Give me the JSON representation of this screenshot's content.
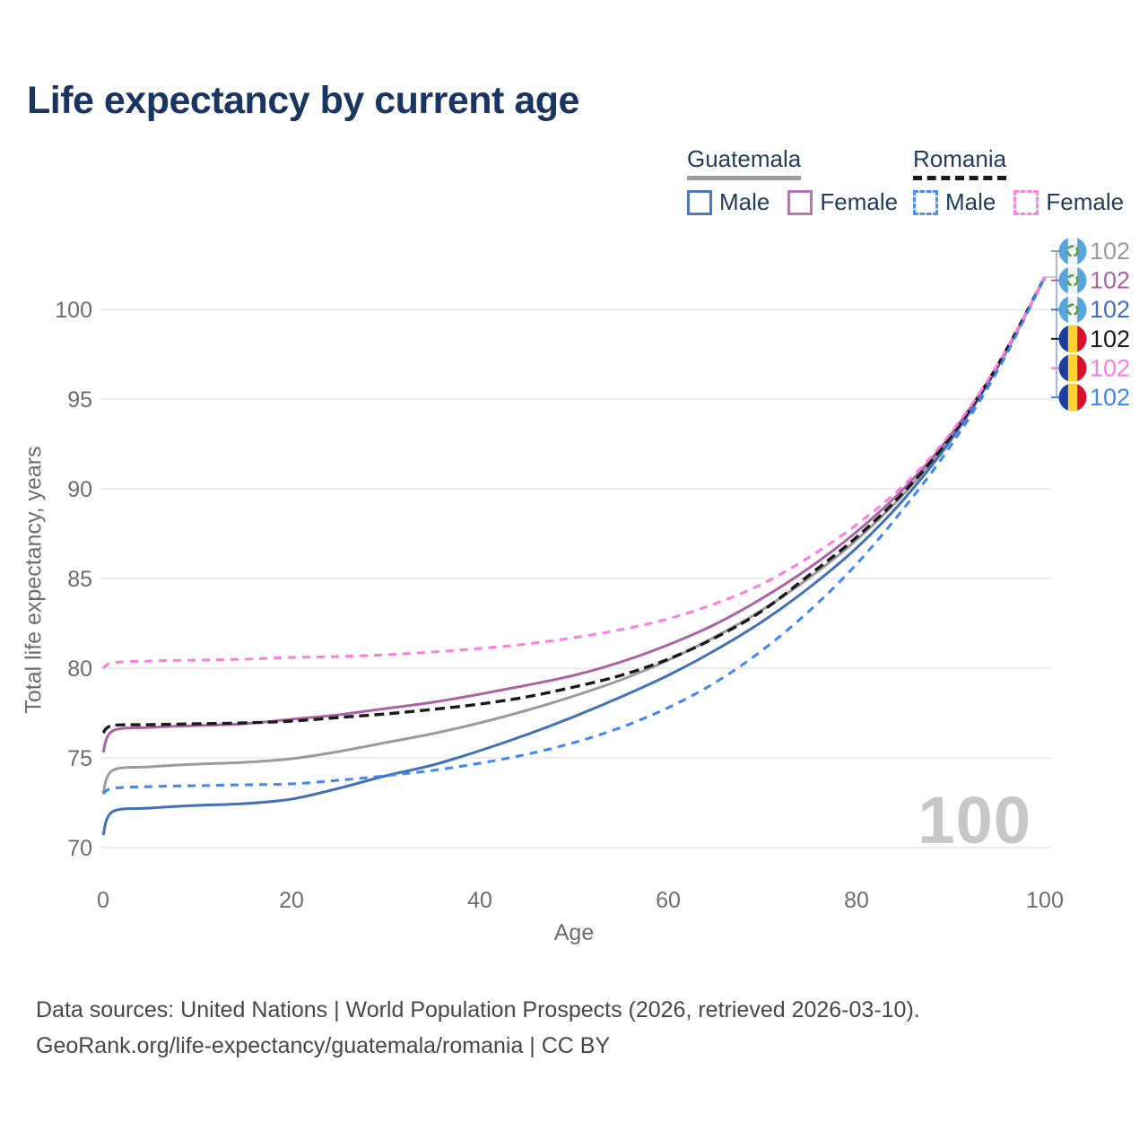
{
  "title": "Life expectancy by current age",
  "age_counter": "100",
  "legend": {
    "groups": [
      {
        "country": "Guatemala",
        "underline_color": "#9b9b9b",
        "underline_style": "solid",
        "items": [
          {
            "label": "Male",
            "color": "#4a7ab8",
            "style": "solid"
          },
          {
            "label": "Female",
            "color": "#b577af",
            "style": "solid"
          }
        ]
      },
      {
        "country": "Romania",
        "underline_color": "#1a1a1a",
        "underline_style": "dashed",
        "items": [
          {
            "label": "Male",
            "color": "#4f93fa",
            "style": "dashed"
          },
          {
            "label": "Female",
            "color": "#fb86e4",
            "style": "dashed"
          }
        ]
      }
    ]
  },
  "footer": {
    "line1": "Data sources: United Nations | World Population Prospects (2026, retrieved 2026-03-10).",
    "line2": "GeoRank.org/life-expectancy/guatemala/romania | CC BY"
  },
  "icons": {
    "guatemala_flag": {
      "bands": [
        "#58a5de",
        "#f2f5f7",
        "#58a5de"
      ],
      "emblem": "#5a9c44"
    },
    "romania_flag": {
      "bands": [
        "#1b3ea0",
        "#ffd230",
        "#d8102c"
      ]
    }
  },
  "chart_data": {
    "type": "line",
    "title": "Life expectancy by current age",
    "xlabel": "Age",
    "ylabel": "Total life expectancy, years",
    "xlim": [
      0,
      100
    ],
    "ylim": [
      70,
      102
    ],
    "xticks": [
      0,
      20,
      40,
      60,
      80,
      100
    ],
    "yticks": [
      70,
      75,
      80,
      85,
      90,
      95,
      100
    ],
    "grid": "horizontal",
    "legend_position": "top-right",
    "x": [
      0,
      1,
      5,
      10,
      15,
      20,
      25,
      30,
      35,
      40,
      45,
      50,
      55,
      60,
      65,
      70,
      75,
      80,
      85,
      90,
      95,
      100
    ],
    "series": [
      {
        "name": "Guatemala Total",
        "slug": "guatemala-total",
        "country": "Guatemala",
        "sex": "Total",
        "color": "#9b9b9b",
        "dash": "solid",
        "width": 3,
        "flag": "guatemala_flag",
        "end_value": "102",
        "row": 0,
        "values": [
          73.0,
          74.3,
          74.5,
          74.65,
          74.75,
          74.95,
          75.35,
          75.85,
          76.35,
          76.95,
          77.65,
          78.45,
          79.35,
          80.45,
          81.75,
          83.25,
          85.05,
          87.15,
          89.7,
          92.85,
          96.85,
          101.8
        ]
      },
      {
        "name": "Guatemala Male",
        "slug": "guatemala-male",
        "country": "Guatemala",
        "sex": "Male",
        "color": "#4271b5",
        "dash": "solid",
        "width": 3,
        "flag": "guatemala_flag",
        "end_value": "102",
        "row": 2,
        "values": [
          70.7,
          72.0,
          72.2,
          72.35,
          72.45,
          72.7,
          73.3,
          74.0,
          74.6,
          75.4,
          76.3,
          77.3,
          78.4,
          79.6,
          81.0,
          82.6,
          84.5,
          86.7,
          89.4,
          92.7,
          96.8,
          101.8
        ]
      },
      {
        "name": "Guatemala Female",
        "slug": "guatemala-female",
        "country": "Guatemala",
        "sex": "Female",
        "color": "#aa64a5",
        "dash": "solid",
        "width": 3,
        "flag": "guatemala_flag",
        "end_value": "102",
        "row": 1,
        "values": [
          75.3,
          76.5,
          76.7,
          76.8,
          76.9,
          77.15,
          77.4,
          77.75,
          78.1,
          78.55,
          79.05,
          79.6,
          80.35,
          81.3,
          82.45,
          83.9,
          85.6,
          87.6,
          90.0,
          93.0,
          96.9,
          101.8
        ]
      },
      {
        "name": "Romania Total",
        "slug": "romania-total",
        "country": "Romania",
        "sex": "Total",
        "color": "#1a1a1a",
        "dash": "11 6",
        "width": 3.4,
        "flag": "romania_flag",
        "end_value": "102",
        "row": 3,
        "values": [
          76.4,
          76.8,
          76.85,
          76.9,
          76.95,
          77.05,
          77.25,
          77.45,
          77.7,
          78.0,
          78.4,
          78.95,
          79.6,
          80.5,
          81.7,
          83.2,
          85.2,
          87.3,
          89.8,
          92.9,
          96.9,
          101.8
        ]
      },
      {
        "name": "Romania Male",
        "slug": "romania-male",
        "country": "Romania",
        "sex": "Male",
        "color": "#3f86f5",
        "dash": "9 7",
        "width": 3,
        "flag": "romania_flag",
        "end_value": "102",
        "row": 5,
        "values": [
          73.0,
          73.3,
          73.4,
          73.45,
          73.5,
          73.55,
          73.75,
          74.0,
          74.3,
          74.7,
          75.2,
          75.85,
          76.7,
          77.8,
          79.2,
          81.0,
          83.2,
          85.8,
          88.9,
          92.4,
          96.6,
          101.8
        ]
      },
      {
        "name": "Romania Female",
        "slug": "romania-female",
        "country": "Romania",
        "sex": "Female",
        "color": "#fc7ce1",
        "dash": "9 7",
        "width": 3,
        "flag": "romania_flag",
        "end_value": "102",
        "row": 4,
        "values": [
          80.0,
          80.3,
          80.4,
          80.45,
          80.5,
          80.6,
          80.65,
          80.75,
          80.9,
          81.1,
          81.35,
          81.7,
          82.15,
          82.75,
          83.6,
          84.7,
          86.2,
          88.0,
          90.2,
          93.1,
          96.95,
          101.8
        ]
      }
    ]
  }
}
